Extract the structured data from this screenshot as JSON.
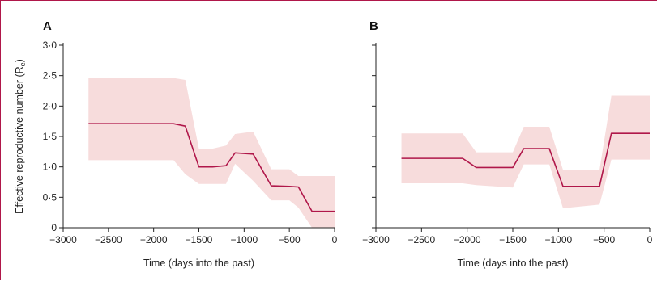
{
  "chart_data": [
    {
      "type": "line",
      "panel_label": "A",
      "xlabel": "Time (days into the past)",
      "ylabel": "Effective reproductive number (R",
      "ylabel_subscript": "e",
      "ylabel_close": ")",
      "xlim": [
        -3000,
        0
      ],
      "ylim": [
        0,
        3
      ],
      "xticks": [
        -3000,
        -2500,
        -2000,
        -1500,
        -1000,
        -500,
        0
      ],
      "xtick_labels": [
        "−3000",
        "−2500",
        "−2000",
        "−1500",
        "−1000",
        "−500",
        "0"
      ],
      "yticks": [
        0,
        0.5,
        1,
        1.5,
        2,
        2.5,
        3
      ],
      "ytick_labels": [
        "0",
        "0·5",
        "1·0",
        "1·5",
        "2·0",
        "2·5",
        "3·0"
      ],
      "grid": false,
      "line_color": "#b0174a",
      "band_color": "#f7dcdc",
      "series": [
        {
          "x": [
            -2720,
            -1780,
            -1650,
            -1500,
            -1350,
            -1200,
            -1100,
            -900,
            -700,
            -500,
            -400,
            -250,
            0
          ],
          "y": [
            1.71,
            1.71,
            1.67,
            1.0,
            1.0,
            1.02,
            1.23,
            1.21,
            0.69,
            0.68,
            0.67,
            0.27,
            0.27
          ],
          "lower": [
            1.11,
            1.11,
            0.88,
            0.72,
            0.72,
            0.72,
            1.05,
            0.77,
            0.45,
            0.45,
            0.33,
            0.0,
            0.0
          ],
          "upper": [
            2.46,
            2.46,
            2.43,
            1.3,
            1.3,
            1.35,
            1.54,
            1.58,
            0.96,
            0.96,
            0.85,
            0.85,
            0.85
          ]
        }
      ]
    },
    {
      "type": "line",
      "panel_label": "B",
      "xlabel": "Time (days into the past)",
      "xlim": [
        -3000,
        0
      ],
      "ylim": [
        0,
        3
      ],
      "xticks": [
        -3000,
        -2500,
        -2000,
        -1500,
        -1000,
        -500,
        0
      ],
      "xtick_labels": [
        "−3000",
        "−2500",
        "−2000",
        "−1500",
        "−1000",
        "−500",
        "0"
      ],
      "yticks": [
        0,
        0.5,
        1,
        1.5,
        2,
        2.5,
        3
      ],
      "grid": false,
      "line_color": "#b0174a",
      "band_color": "#f7dcdc",
      "series": [
        {
          "x": [
            -2720,
            -2050,
            -1900,
            -1500,
            -1380,
            -1100,
            -950,
            -550,
            -420,
            0
          ],
          "y": [
            1.14,
            1.14,
            0.99,
            0.99,
            1.3,
            1.3,
            0.68,
            0.68,
            1.55,
            1.55
          ],
          "lower": [
            0.73,
            0.73,
            0.7,
            0.66,
            1.04,
            1.04,
            0.32,
            0.38,
            1.12,
            1.12
          ],
          "upper": [
            1.55,
            1.55,
            1.24,
            1.24,
            1.66,
            1.66,
            0.95,
            0.95,
            2.17,
            2.17
          ]
        }
      ]
    }
  ]
}
